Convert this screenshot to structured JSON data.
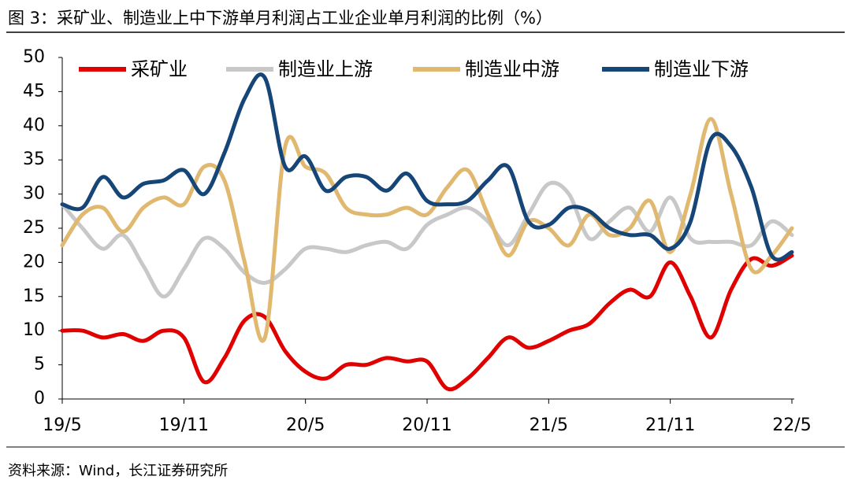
{
  "chart_data": {
    "type": "line",
    "title": "图 3：采矿业、制造业上中下游单月利润占工业企业单月利润的比例（%）",
    "source": "资料来源：Wind，长江证券研究所",
    "categories": [
      "19/5",
      null,
      null,
      null,
      null,
      null,
      "19/11",
      null,
      null,
      null,
      null,
      null,
      "20/5",
      null,
      null,
      null,
      null,
      null,
      "20/11",
      null,
      null,
      null,
      null,
      null,
      "21/5",
      null,
      null,
      null,
      null,
      null,
      "21/11",
      null,
      null,
      null,
      null,
      null,
      "22/5"
    ],
    "series": [
      {
        "name": "采矿业",
        "color": "#e00000",
        "values": [
          10,
          10,
          9,
          9.5,
          8.5,
          10,
          9,
          2.5,
          6,
          11.5,
          12,
          7,
          4,
          3,
          5,
          5,
          6,
          5.5,
          5.5,
          1.5,
          3,
          6,
          9,
          7.5,
          8.5,
          10,
          11,
          14,
          16,
          15,
          20,
          15,
          9,
          16,
          20.5,
          19.5,
          21
        ]
      },
      {
        "name": "制造业上游",
        "color": "#c8c8c8",
        "values": [
          28.5,
          25,
          22,
          24,
          19.5,
          15,
          19,
          23.5,
          22,
          18.5,
          17,
          19,
          22,
          22,
          21.5,
          22.5,
          23,
          22,
          25.5,
          27,
          28,
          26,
          22.5,
          27,
          31.5,
          30,
          23.5,
          26,
          28,
          24.5,
          29.5,
          23.5,
          23,
          23,
          22.5,
          26,
          24
        ]
      },
      {
        "name": "制造业中游",
        "color": "#e0b870",
        "values": [
          22.5,
          27,
          28,
          24.5,
          28,
          29.5,
          28.5,
          34,
          32,
          20,
          9,
          37,
          34,
          33,
          28,
          27,
          27,
          28,
          27,
          31,
          33.5,
          27,
          21,
          26,
          25,
          22.5,
          27,
          24,
          25,
          29,
          21.5,
          30,
          41,
          30,
          19,
          21,
          25
        ]
      },
      {
        "name": "制造业下游",
        "color": "#164678",
        "values": [
          28.5,
          28,
          32.5,
          29.5,
          31.5,
          32,
          33.5,
          30,
          36,
          44,
          47,
          34,
          35.5,
          30.5,
          32.5,
          32.5,
          30.5,
          33,
          29,
          28.5,
          29,
          32,
          34,
          26,
          25.5,
          28,
          27.5,
          25,
          24,
          24,
          22,
          26,
          38,
          37,
          31,
          21,
          21.5
        ]
      }
    ],
    "ylim": [
      0,
      50
    ],
    "yticks": [
      0,
      5,
      10,
      15,
      20,
      25,
      30,
      35,
      40,
      45,
      50
    ],
    "grid": false,
    "legend": "top"
  }
}
